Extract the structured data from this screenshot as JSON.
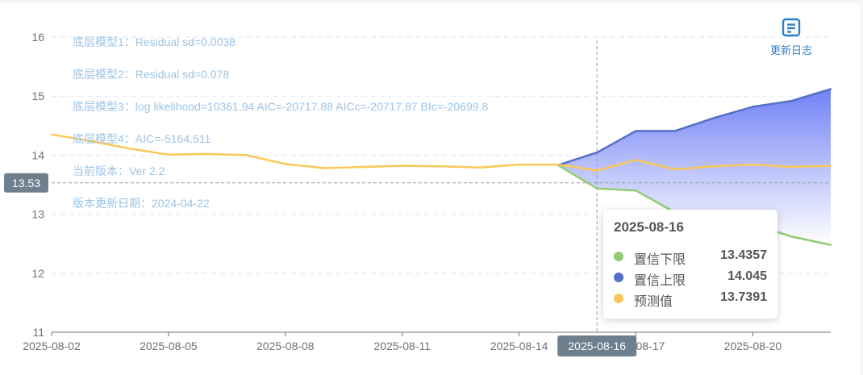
{
  "chart_data": {
    "type": "line",
    "x": [
      "2025-08-02",
      "2025-08-03",
      "2025-08-04",
      "2025-08-05",
      "2025-08-06",
      "2025-08-07",
      "2025-08-08",
      "2025-08-09",
      "2025-08-10",
      "2025-08-11",
      "2025-08-12",
      "2025-08-13",
      "2025-08-14",
      "2025-08-15",
      "2025-08-16",
      "2025-08-17",
      "2025-08-18",
      "2025-08-19",
      "2025-08-20",
      "2025-08-21",
      "2025-08-22"
    ],
    "x_tick_labels": [
      "2025-08-02",
      "2025-08-05",
      "2025-08-08",
      "2025-08-11",
      "2025-08-14",
      "2025-08-17",
      "2025-08-20"
    ],
    "ylim": [
      11,
      16
    ],
    "y_ticks": [
      11,
      12,
      13,
      14,
      15,
      16
    ],
    "grid": "horizontal dashed",
    "series": [
      {
        "name": "置信下限",
        "color": "#91cc75",
        "values": [
          null,
          null,
          null,
          null,
          null,
          null,
          null,
          null,
          null,
          null,
          null,
          null,
          null,
          13.83,
          13.4357,
          13.4,
          13.03,
          12.95,
          12.83,
          12.62,
          12.48
        ]
      },
      {
        "name": "置信上限",
        "color": "#5470c6",
        "values": [
          null,
          null,
          null,
          null,
          null,
          null,
          null,
          null,
          null,
          null,
          null,
          null,
          null,
          13.83,
          14.045,
          14.41,
          14.41,
          14.63,
          14.82,
          14.92,
          15.12
        ]
      },
      {
        "name": "预测值",
        "color": "#fac858",
        "values": [
          14.35,
          14.24,
          14.11,
          14.01,
          14.02,
          14.0,
          13.85,
          13.78,
          13.8,
          13.82,
          13.81,
          13.79,
          13.84,
          13.84,
          13.7391,
          13.92,
          13.76,
          13.81,
          13.84,
          13.8,
          13.82
        ]
      }
    ],
    "reference_line": {
      "value": 13.53,
      "label": "13.53"
    },
    "crosshair_x_label": "2025-08-16"
  },
  "annotations": [
    "底层模型1：Residual sd=0.0038",
    "底层模型2：Residual sd=0.078",
    "底层模型3：log likelihood=10361.94 AIC=-20717.88 AICc=-20717.87 BIc=-20699.8",
    "底层模型4：AIC=-5164.511",
    "当前版本：Ver 2.2",
    "版本更新日期：2024-04-22"
  ],
  "changelog": {
    "label": "更新日志",
    "icon": "document-icon"
  },
  "tooltip": {
    "date": "2025-08-16",
    "rows": [
      {
        "name": "置信下限",
        "value": "13.4357",
        "color": "#91cc75"
      },
      {
        "name": "置信上限",
        "value": "14.045",
        "color": "#5470c6"
      },
      {
        "name": "预测值",
        "value": "13.7391",
        "color": "#fac858"
      }
    ]
  }
}
